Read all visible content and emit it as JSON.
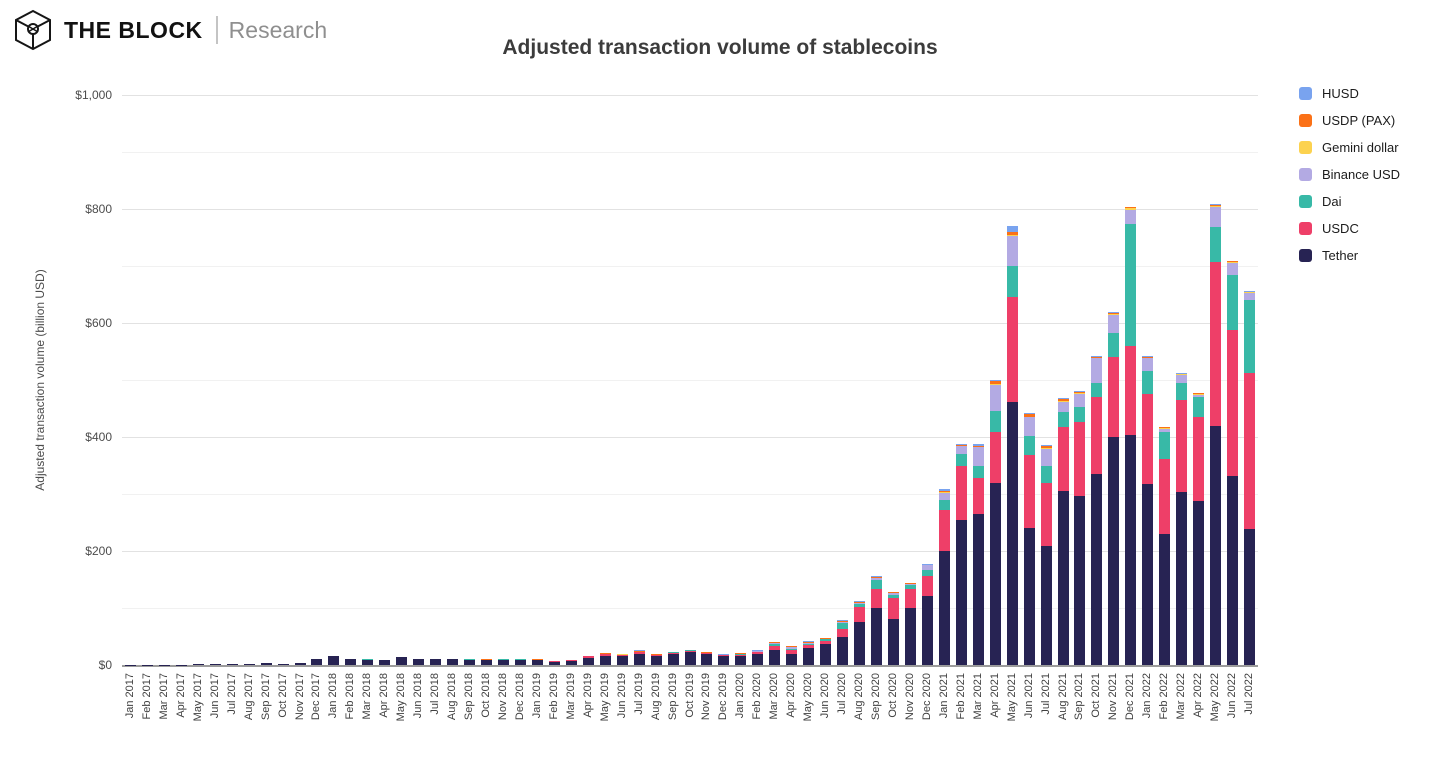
{
  "logo": {
    "brand": "THE BLOCK",
    "sub": "Research"
  },
  "chart_data": {
    "type": "bar",
    "stacked": true,
    "title": "Adjusted transaction volume of stablecoins",
    "ylabel": "Adjusted transaction volume (billion USD)",
    "ylim": [
      0,
      1000
    ],
    "grid": true,
    "legend_position": "right",
    "yticks": [
      {
        "v": 0,
        "label": "$0"
      },
      {
        "v": 200,
        "label": "$200"
      },
      {
        "v": 400,
        "label": "$400"
      },
      {
        "v": 600,
        "label": "$600"
      },
      {
        "v": 800,
        "label": "$800"
      },
      {
        "v": 1000,
        "label": "$1,000"
      }
    ],
    "major_gridlines": [
      200,
      400,
      600,
      800,
      1000
    ],
    "minor_gridlines": [
      100,
      300,
      500,
      700,
      900
    ],
    "categories": [
      "Jan 2017",
      "Feb 2017",
      "Mar 2017",
      "Apr 2017",
      "May 2017",
      "Jun 2017",
      "Jul 2017",
      "Aug 2017",
      "Sep 2017",
      "Oct 2017",
      "Nov 2017",
      "Dec 2017",
      "Jan 2018",
      "Feb 2018",
      "Mar 2018",
      "Apr 2018",
      "May 2018",
      "Jun 2018",
      "Jul 2018",
      "Aug 2018",
      "Sep 2018",
      "Oct 2018",
      "Nov 2018",
      "Dec 2018",
      "Jan 2019",
      "Feb 2019",
      "Mar 2019",
      "Apr 2019",
      "May 2019",
      "Jun 2019",
      "Jul 2019",
      "Aug 2019",
      "Sep 2019",
      "Oct 2019",
      "Nov 2019",
      "Dec 2019",
      "Jan 2020",
      "Feb 2020",
      "Mar 2020",
      "Apr 2020",
      "May 2020",
      "Jun 2020",
      "Jul 2020",
      "Aug 2020",
      "Sep 2020",
      "Oct 2020",
      "Nov 2020",
      "Dec 2020",
      "Jan 2021",
      "Feb 2021",
      "Mar 2021",
      "Apr 2021",
      "May 2021",
      "Jun 2021",
      "Jul 2021",
      "Aug 2021",
      "Sep 2021",
      "Oct 2021",
      "Nov 2021",
      "Dec 2021",
      "Jan 2022",
      "Feb 2022",
      "Mar 2022",
      "Apr 2022",
      "May 2022",
      "Jun 2022",
      "Jul 2022"
    ],
    "series": [
      {
        "name": "Tether",
        "color": "#272353",
        "values": [
          0.3,
          0.4,
          0.5,
          0.6,
          1,
          1.2,
          1.5,
          1.8,
          3,
          2,
          4,
          10,
          15,
          10,
          9.5,
          9,
          13.5,
          11,
          11,
          11,
          9.5,
          8,
          8.5,
          8,
          8,
          5.5,
          7.5,
          13,
          16,
          16,
          19,
          15,
          19,
          22,
          19,
          15,
          16,
          19,
          27,
          20,
          29,
          37,
          50,
          76,
          100,
          81,
          100,
          121,
          200,
          255,
          265,
          320,
          462,
          241,
          209,
          306,
          297,
          335,
          400,
          403,
          318,
          229,
          303,
          288,
          420,
          332,
          238
        ]
      },
      {
        "name": "USDC",
        "color": "#ee3f68",
        "values": [
          0,
          0,
          0,
          0,
          0,
          0,
          0,
          0,
          0,
          0,
          0,
          0,
          0,
          0,
          0,
          0,
          0,
          0,
          0,
          0,
          0,
          0.5,
          1,
          1.5,
          1,
          1,
          1,
          2,
          2.5,
          2,
          3,
          2.5,
          2.5,
          2.5,
          2,
          2,
          2,
          4,
          7,
          7,
          6,
          6,
          14,
          25,
          33,
          37,
          33,
          35,
          72,
          95,
          63,
          88,
          183,
          127,
          111,
          111,
          129,
          135,
          141,
          156,
          158,
          133,
          162,
          147,
          287,
          256,
          274
        ]
      },
      {
        "name": "Dai",
        "color": "#38b9a7",
        "values": [
          0,
          0,
          0,
          0,
          0,
          0,
          0,
          0,
          0,
          0,
          0,
          0,
          0,
          0,
          0.5,
          0,
          0.5,
          0,
          0,
          0,
          0.5,
          0.5,
          0.5,
          0.3,
          0.3,
          0.2,
          0.3,
          0.4,
          0.5,
          0.4,
          0.5,
          0.4,
          0.5,
          1,
          0.5,
          0.4,
          0.5,
          0.6,
          3,
          2,
          2,
          2,
          9,
          6,
          17,
          5,
          7,
          11,
          17,
          20,
          22,
          37,
          55,
          34,
          30,
          27,
          27,
          24,
          41,
          214,
          39,
          47,
          29,
          35,
          61,
          97,
          129
        ]
      },
      {
        "name": "Binance USD",
        "color": "#b3aae3",
        "values": [
          0,
          0,
          0,
          0,
          0,
          0,
          0,
          0,
          0,
          0,
          0,
          0,
          0,
          0,
          0,
          0,
          0,
          0,
          0,
          0,
          0,
          0,
          0,
          0,
          0,
          0,
          0,
          0,
          0,
          0,
          0,
          0,
          0,
          0,
          0,
          0,
          0.5,
          0.5,
          2,
          2,
          2,
          1,
          3,
          2,
          3,
          3,
          2,
          8,
          13,
          14,
          32,
          46,
          52,
          33,
          29,
          18,
          23,
          44,
          32,
          25,
          23,
          6,
          15,
          4,
          36,
          21,
          12
        ]
      },
      {
        "name": "Gemini dollar",
        "color": "#fcd24f",
        "values": [
          0,
          0,
          0,
          0,
          0,
          0,
          0,
          0,
          0,
          0,
          0,
          0,
          0,
          0,
          0,
          0,
          0,
          0,
          0,
          0,
          0,
          0.3,
          0.3,
          0.5,
          0.2,
          0.2,
          0.2,
          0.2,
          0.2,
          0.2,
          0.2,
          0.2,
          0.2,
          0.2,
          0.2,
          0.2,
          0.3,
          0.3,
          0.3,
          0.3,
          0.3,
          0.3,
          0.3,
          0.3,
          0.3,
          0.3,
          0.3,
          0.3,
          1,
          1,
          1,
          2,
          3,
          1,
          1,
          1,
          1,
          1,
          1,
          4,
          1,
          1,
          1,
          1,
          2,
          1,
          1
        ]
      },
      {
        "name": "USDP (PAX)",
        "color": "#fb7117",
        "values": [
          0,
          0,
          0,
          0,
          0,
          0,
          0,
          0,
          0,
          0,
          0,
          0,
          0,
          0,
          0,
          0,
          0,
          0,
          0,
          0,
          0.5,
          1,
          1,
          1,
          1,
          0.5,
          0.5,
          1,
          1.5,
          1,
          1.5,
          1,
          1,
          1,
          0.5,
          0.5,
          1,
          1,
          1.5,
          1.5,
          1.5,
          1,
          1.5,
          1.5,
          1.5,
          1.5,
          1,
          1,
          2,
          1.5,
          2,
          5,
          5,
          4,
          4,
          4,
          2,
          2,
          3,
          1,
          2,
          1.5,
          1.5,
          1.5,
          2,
          1.5,
          1
        ]
      },
      {
        "name": "HUSD",
        "color": "#79a3ef",
        "values": [
          0,
          0,
          0,
          0,
          0,
          0,
          0,
          0,
          0,
          0,
          0,
          0,
          0,
          0,
          0,
          0,
          0,
          0,
          0,
          0,
          0,
          0,
          0,
          0,
          0,
          0,
          0,
          0,
          0,
          0,
          1.5,
          0.5,
          0.5,
          0.5,
          0.5,
          0.5,
          0.5,
          0.5,
          0.5,
          0.5,
          1,
          1,
          1.5,
          1,
          1,
          1,
          0.5,
          0.5,
          3,
          2,
          2,
          2,
          10,
          2,
          2,
          1,
          1,
          1,
          1,
          1,
          1,
          0.5,
          0.5,
          0.5,
          1,
          0.5,
          0.5
        ]
      }
    ]
  }
}
